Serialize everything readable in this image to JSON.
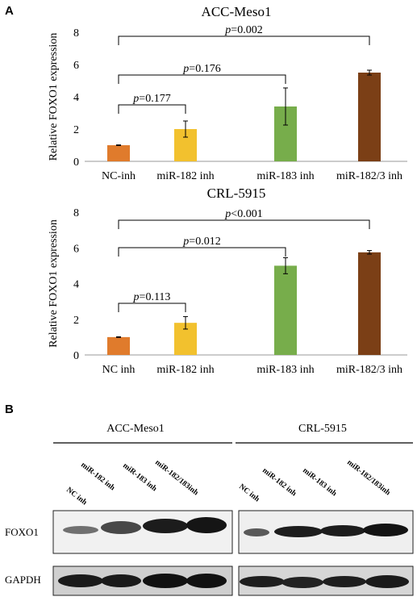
{
  "panel_a_label": "A",
  "panel_b_label": "B",
  "chart_data": [
    {
      "type": "bar",
      "title": "ACC-Meso1",
      "ylabel": "Relative FOXO1 expression",
      "xlabel": "",
      "categories": [
        "NC-inh",
        "miR-182 inh",
        "miR-183 inh",
        "miR-182/3 inh"
      ],
      "values": [
        1.0,
        2.0,
        3.4,
        5.5
      ],
      "errors": [
        0.02,
        0.5,
        1.15,
        0.15
      ],
      "colors": [
        "#e07b2c",
        "#f2c12e",
        "#77ad4b",
        "#7b3f16"
      ],
      "ylim": [
        0,
        8
      ],
      "yticks": [
        0,
        2,
        4,
        6,
        8
      ],
      "grid": false,
      "comparisons": [
        {
          "from": 0,
          "to": 1,
          "label_prefix": "p",
          "label_value": "=0.177",
          "level": 1
        },
        {
          "from": 0,
          "to": 2,
          "label_prefix": "p",
          "label_value": "=0.176",
          "level": 2
        },
        {
          "from": 0,
          "to": 3,
          "label_prefix": "p",
          "label_value": "=0.002",
          "level": 3
        }
      ]
    },
    {
      "type": "bar",
      "title": "CRL-5915",
      "ylabel": "Relative FOXO1 expression",
      "xlabel": "",
      "categories": [
        "NC inh",
        "miR-182 inh",
        "miR-183 inh",
        "miR-182/3 inh"
      ],
      "values": [
        1.0,
        1.8,
        5.0,
        5.75
      ],
      "errors": [
        0.02,
        0.35,
        0.45,
        0.1
      ],
      "colors": [
        "#e07b2c",
        "#f2c12e",
        "#77ad4b",
        "#7b3f16"
      ],
      "ylim": [
        0,
        8
      ],
      "yticks": [
        0,
        2,
        4,
        6,
        8
      ],
      "grid": false,
      "comparisons": [
        {
          "from": 0,
          "to": 1,
          "label_prefix": "p",
          "label_value": "=0.113",
          "level": 1
        },
        {
          "from": 0,
          "to": 2,
          "label_prefix": "p",
          "label_value": "=0.012",
          "level": 2
        },
        {
          "from": 0,
          "to": 3,
          "label_prefix": "p",
          "label_value": "<0.001",
          "level": 3
        }
      ]
    }
  ],
  "western_blot": {
    "cell_lines": [
      "ACC-Meso1",
      "CRL-5915"
    ],
    "lanes": [
      "NC inh",
      "miR-182 inh",
      "miR-183 inh",
      "miR-182/183inh"
    ],
    "proteins": [
      "FOXO1",
      "GAPDH"
    ]
  }
}
